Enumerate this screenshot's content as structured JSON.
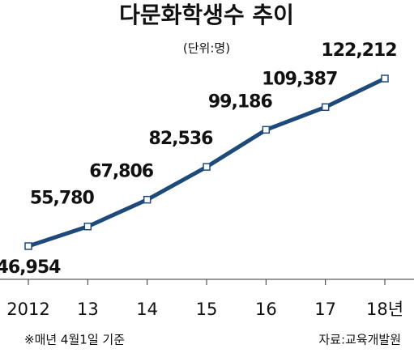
{
  "chart_data": {
    "type": "line",
    "title": "다문화학생수 추이",
    "subtitle": "(단위:명)",
    "categories": [
      "2012",
      "13",
      "14",
      "15",
      "16",
      "17",
      "18년"
    ],
    "values": [
      46954,
      55780,
      67806,
      82536,
      99186,
      109387,
      122212
    ],
    "value_labels": [
      "46,954",
      "55,780",
      "67,806",
      "82,536",
      "99,186",
      "109,387",
      "122,212"
    ],
    "color": "#1d4a7a",
    "note": "※매년 4월1일 기준",
    "source": "자료:교육개발원"
  }
}
